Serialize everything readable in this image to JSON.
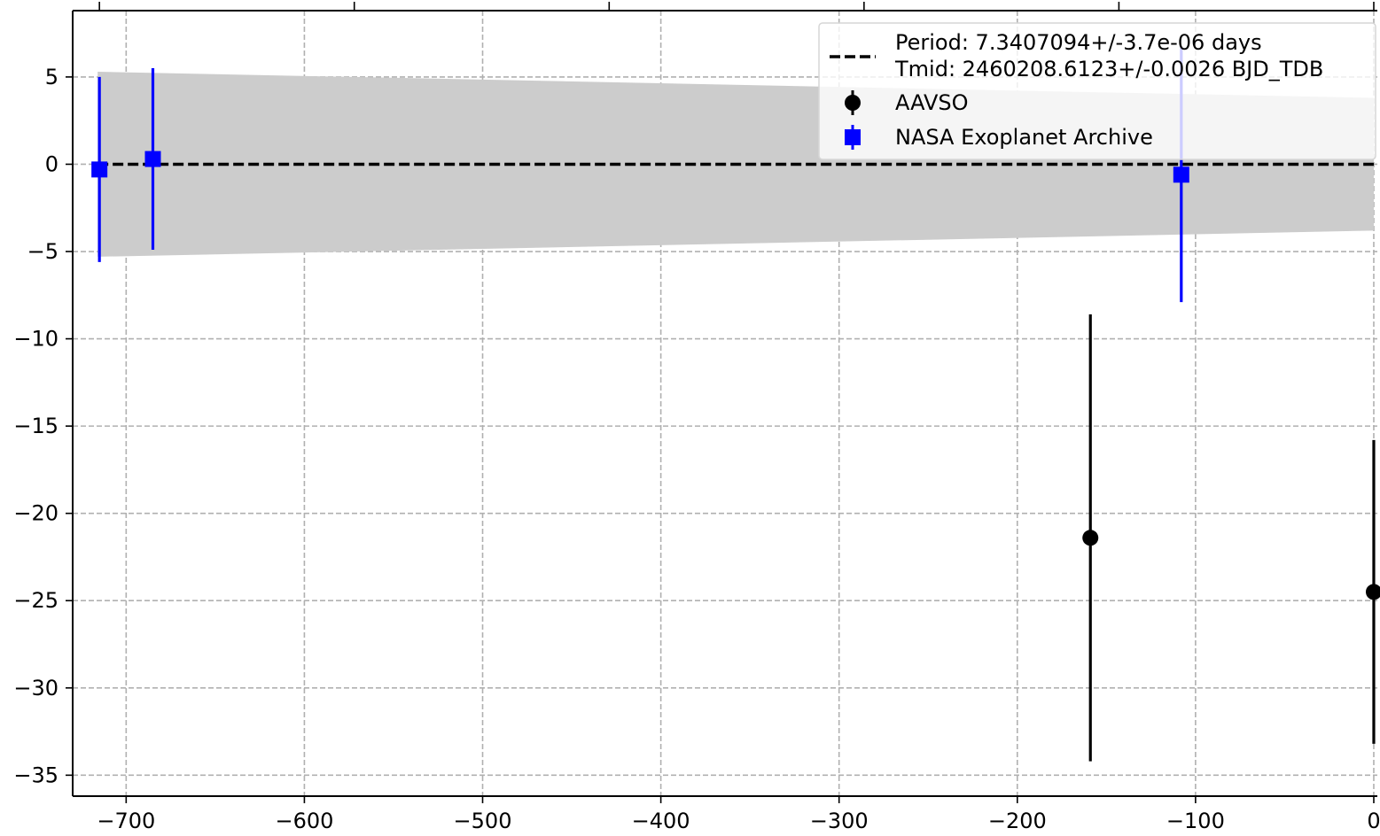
{
  "chart_data": {
    "type": "scatter",
    "title": "",
    "xlabel": "",
    "ylabel": "",
    "xlim": [
      -730,
      2
    ],
    "ylim": [
      -36.2,
      8.8
    ],
    "grid": true,
    "legend_position": "top-right",
    "x_ticks": [
      -700,
      -600,
      -500,
      -400,
      -300,
      -200,
      -100,
      0
    ],
    "x_tick_labels": [
      "−700",
      "−600",
      "−500",
      "−400",
      "−300",
      "−200",
      "−100",
      "0"
    ],
    "y_ticks": [
      5,
      0,
      -5,
      -10,
      -15,
      -20,
      -25,
      -30,
      -35
    ],
    "y_tick_labels": [
      "5",
      "0",
      "−5",
      "−10",
      "−15",
      "−20",
      "−25",
      "−30",
      "−35"
    ],
    "top_ticks": [
      -715,
      -572,
      -429,
      -286,
      -143,
      0
    ],
    "fit": {
      "label_line1": "Period: 7.3407094+/-3.7e-06 days",
      "label_line2": "Tmid: 2460208.6123+/-0.0026 BJD_TDB",
      "color": "#000000",
      "y": 0,
      "band_x": [
        -716,
        0
      ],
      "band_upper": [
        5.3,
        3.8
      ],
      "band_lower": [
        -5.3,
        -3.8
      ],
      "band_color": "#cccccc"
    },
    "series": [
      {
        "name": "AAVSO",
        "marker": "circle",
        "color": "#000000",
        "points": [
          {
            "x": -159,
            "y": -21.4,
            "yerr": 12.8
          },
          {
            "x": 0,
            "y": -24.5,
            "yerr": 8.7
          }
        ]
      },
      {
        "name": "NASA Exoplanet Archive",
        "marker": "square",
        "color": "#0000ff",
        "points": [
          {
            "x": -715,
            "y": -0.3,
            "yerr": 5.3
          },
          {
            "x": -685,
            "y": 0.3,
            "yerr": 5.2
          },
          {
            "x": -108,
            "y": -0.6,
            "yerr": 7.3
          }
        ]
      }
    ]
  }
}
